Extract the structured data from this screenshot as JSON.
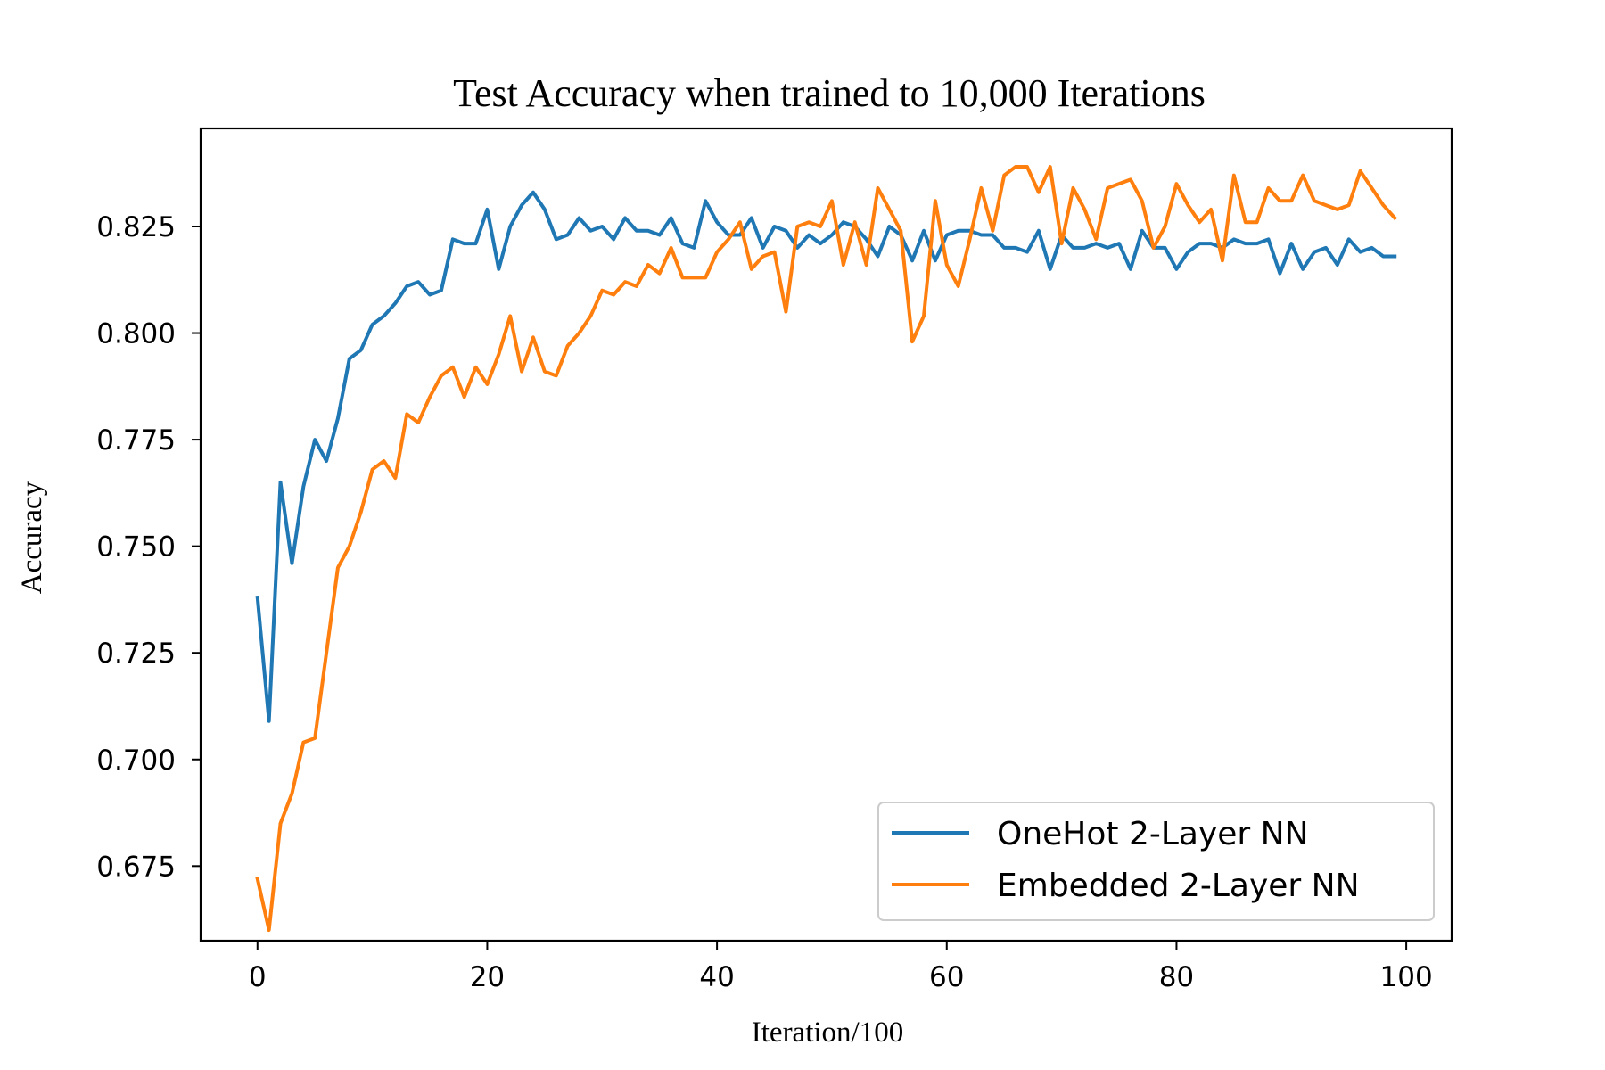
{
  "chart_data": {
    "type": "line",
    "title": "Test Accuracy when trained to 10,000 Iterations",
    "xlabel": "Iteration/100",
    "ylabel": "Accuracy",
    "xlim": [
      -4.95,
      103.95
    ],
    "ylim": [
      0.6575,
      0.848
    ],
    "x_ticks": [
      0,
      20,
      40,
      60,
      80,
      100
    ],
    "x_tick_labels": [
      "0",
      "20",
      "40",
      "60",
      "80",
      "100"
    ],
    "y_ticks": [
      0.675,
      0.7,
      0.725,
      0.75,
      0.775,
      0.8,
      0.825
    ],
    "y_tick_labels": [
      "0.675",
      "0.700",
      "0.725",
      "0.750",
      "0.775",
      "0.800",
      "0.825"
    ],
    "grid": false,
    "legend_position": "lower-right",
    "series": [
      {
        "name": "OneHot 2-Layer NN",
        "color": "#1f77b4",
        "values": [
          0.738,
          0.709,
          0.765,
          0.746,
          0.764,
          0.775,
          0.77,
          0.78,
          0.794,
          0.796,
          0.802,
          0.804,
          0.807,
          0.811,
          0.812,
          0.809,
          0.81,
          0.822,
          0.821,
          0.821,
          0.829,
          0.815,
          0.825,
          0.83,
          0.833,
          0.829,
          0.822,
          0.823,
          0.827,
          0.824,
          0.825,
          0.822,
          0.827,
          0.824,
          0.824,
          0.823,
          0.827,
          0.821,
          0.82,
          0.831,
          0.826,
          0.823,
          0.823,
          0.827,
          0.82,
          0.825,
          0.824,
          0.82,
          0.823,
          0.821,
          0.823,
          0.826,
          0.825,
          0.822,
          0.818,
          0.825,
          0.823,
          0.817,
          0.824,
          0.817,
          0.823,
          0.824,
          0.824,
          0.823,
          0.823,
          0.82,
          0.82,
          0.819,
          0.824,
          0.815,
          0.823,
          0.82,
          0.82,
          0.821,
          0.82,
          0.821,
          0.815,
          0.824,
          0.82,
          0.82,
          0.815,
          0.819,
          0.821,
          0.821,
          0.82,
          0.822,
          0.821,
          0.821,
          0.822,
          0.814,
          0.821,
          0.815,
          0.819,
          0.82,
          0.816,
          0.822,
          0.819,
          0.82,
          0.818,
          0.818
        ]
      },
      {
        "name": "Embedded 2-Layer NN",
        "color": "#ff7f0e",
        "values": [
          0.672,
          0.66,
          0.685,
          0.692,
          0.704,
          0.705,
          0.725,
          0.745,
          0.75,
          0.758,
          0.768,
          0.77,
          0.766,
          0.781,
          0.779,
          0.785,
          0.79,
          0.792,
          0.785,
          0.792,
          0.788,
          0.795,
          0.804,
          0.791,
          0.799,
          0.791,
          0.79,
          0.797,
          0.8,
          0.804,
          0.81,
          0.809,
          0.812,
          0.811,
          0.816,
          0.814,
          0.82,
          0.813,
          0.813,
          0.813,
          0.819,
          0.822,
          0.826,
          0.815,
          0.818,
          0.819,
          0.805,
          0.825,
          0.826,
          0.825,
          0.831,
          0.816,
          0.826,
          0.816,
          0.834,
          0.829,
          0.824,
          0.798,
          0.804,
          0.831,
          0.816,
          0.811,
          0.822,
          0.834,
          0.824,
          0.837,
          0.839,
          0.839,
          0.833,
          0.839,
          0.821,
          0.834,
          0.829,
          0.822,
          0.834,
          0.835,
          0.836,
          0.831,
          0.82,
          0.825,
          0.835,
          0.83,
          0.826,
          0.829,
          0.817,
          0.837,
          0.826,
          0.826,
          0.834,
          0.831,
          0.831,
          0.837,
          0.831,
          0.83,
          0.829,
          0.83,
          0.838,
          0.834,
          0.83,
          0.827
        ]
      }
    ]
  }
}
